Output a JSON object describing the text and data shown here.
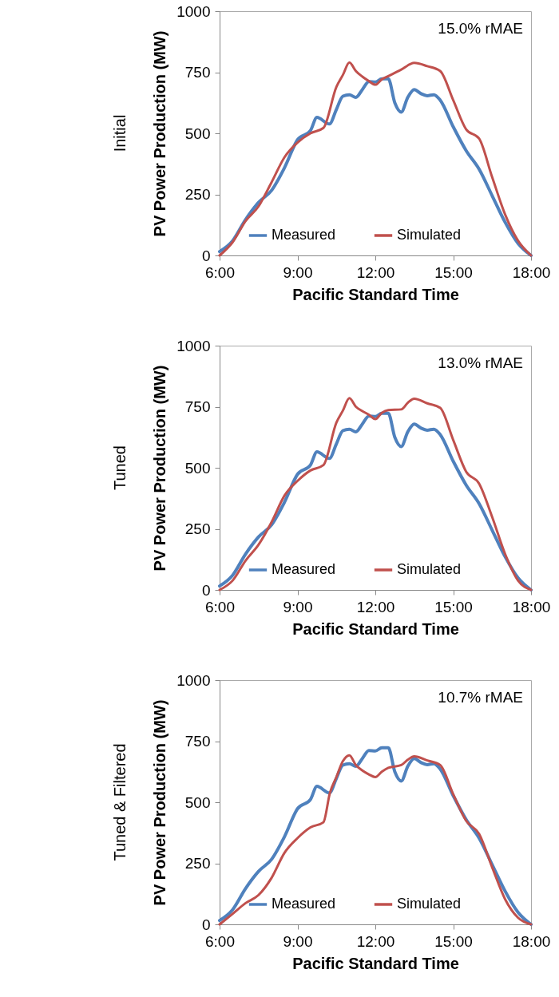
{
  "chart_data": [
    {
      "type": "line",
      "title": "Initial",
      "xlabel": "Pacific Standard Time",
      "ylabel": "PV Power Production (MW)",
      "annotations": [
        "15.0% rMAE"
      ],
      "xlim": [
        6,
        18
      ],
      "xticks": [
        {
          "value": 6,
          "label": "6:00"
        },
        {
          "value": 9,
          "label": "9:00"
        },
        {
          "value": 12,
          "label": "12:00"
        },
        {
          "value": 15,
          "label": "15:00"
        },
        {
          "value": 18,
          "label": "18:00"
        }
      ],
      "ylim": [
        0,
        1000
      ],
      "yticks": [
        0,
        250,
        500,
        750,
        1000
      ],
      "grid": false,
      "legend": "bottom",
      "series": [
        {
          "name": "Measured",
          "color": "#4f81bd",
          "x": [
            6,
            6.5,
            7,
            7.5,
            8,
            8.5,
            9,
            9.5,
            9.75,
            10.23,
            10.5,
            10.75,
            11,
            11.25,
            11.5,
            11.75,
            12,
            12.25,
            12.5,
            12.75,
            13,
            13.25,
            13.5,
            13.75,
            14,
            14.25,
            14.5,
            15,
            15.5,
            16,
            16.5,
            17,
            17.5,
            18
          ],
          "values": [
            16,
            60,
            147,
            217,
            266,
            359,
            473,
            511,
            565,
            538,
            598,
            652,
            658,
            647,
            679,
            712,
            710,
            723,
            723,
            625,
            587,
            647,
            679,
            663,
            654,
            658,
            636,
            527,
            429,
            353,
            245,
            136,
            49,
            0
          ]
        },
        {
          "name": "Simulated",
          "color": "#c0504d",
          "x": [
            6,
            6.5,
            7,
            7.5,
            8,
            8.5,
            9,
            9.5,
            10,
            10.5,
            10.75,
            11,
            11.25,
            11.5,
            11.75,
            12,
            12.25,
            12.5,
            13,
            13.5,
            14,
            14.5,
            15,
            15.5,
            16,
            16.5,
            17,
            17.5,
            18
          ],
          "values": [
            0,
            54,
            141,
            201,
            299,
            402,
            462,
            500,
            522,
            690,
            739,
            790,
            755,
            732,
            714,
            699,
            721,
            734,
            761,
            788,
            775,
            755,
            636,
            516,
            478,
            321,
            168,
            60,
            0
          ]
        }
      ]
    },
    {
      "type": "line",
      "title": "Tuned",
      "xlabel": "Pacific Standard Time",
      "ylabel": "PV Power Production (MW)",
      "annotations": [
        "13.0% rMAE"
      ],
      "xlim": [
        6,
        18
      ],
      "xticks": [
        {
          "value": 6,
          "label": "6:00"
        },
        {
          "value": 9,
          "label": "9:00"
        },
        {
          "value": 12,
          "label": "12:00"
        },
        {
          "value": 15,
          "label": "15:00"
        },
        {
          "value": 18,
          "label": "18:00"
        }
      ],
      "ylim": [
        0,
        1000
      ],
      "yticks": [
        0,
        250,
        500,
        750,
        1000
      ],
      "grid": false,
      "legend": "bottom",
      "series": [
        {
          "name": "Measured",
          "color": "#4f81bd",
          "x": [
            6,
            6.5,
            7,
            7.5,
            8,
            8.5,
            9,
            9.5,
            9.75,
            10.23,
            10.5,
            10.75,
            11,
            11.25,
            11.5,
            11.75,
            12,
            12.25,
            12.5,
            12.75,
            13,
            13.25,
            13.5,
            13.75,
            14,
            14.25,
            14.5,
            15,
            15.5,
            16,
            16.5,
            17,
            17.5,
            18
          ],
          "values": [
            16,
            60,
            147,
            217,
            266,
            359,
            473,
            511,
            565,
            538,
            598,
            652,
            658,
            647,
            679,
            712,
            710,
            723,
            723,
            625,
            587,
            647,
            679,
            663,
            654,
            658,
            636,
            527,
            429,
            353,
            245,
            136,
            49,
            0
          ]
        },
        {
          "name": "Simulated",
          "color": "#c0504d",
          "x": [
            6,
            6.5,
            7,
            7.5,
            8,
            8.5,
            9,
            9.5,
            10,
            10.5,
            10.75,
            11,
            11.25,
            11.5,
            11.75,
            12,
            12.25,
            12.5,
            13,
            13.25,
            13.5,
            14,
            14.5,
            15,
            15.5,
            16,
            16.5,
            17,
            17.5,
            18
          ],
          "values": [
            0,
            38,
            120,
            185,
            277,
            386,
            446,
            489,
            511,
            685,
            734,
            785,
            750,
            732,
            717,
            699,
            725,
            736,
            739,
            766,
            783,
            764,
            745,
            614,
            484,
            435,
            299,
            147,
            38,
            0
          ]
        }
      ]
    },
    {
      "type": "line",
      "title": "Tuned & Filtered",
      "xlabel": "Pacific Standard Time",
      "ylabel": "PV Power Production (MW)",
      "annotations": [
        "10.7% rMAE"
      ],
      "xlim": [
        6,
        18
      ],
      "xticks": [
        {
          "value": 6,
          "label": "6:00"
        },
        {
          "value": 9,
          "label": "9:00"
        },
        {
          "value": 12,
          "label": "12:00"
        },
        {
          "value": 15,
          "label": "15:00"
        },
        {
          "value": 18,
          "label": "18:00"
        }
      ],
      "ylim": [
        0,
        1000
      ],
      "yticks": [
        0,
        250,
        500,
        750,
        1000
      ],
      "grid": false,
      "legend": "bottom",
      "series": [
        {
          "name": "Measured",
          "color": "#4f81bd",
          "x": [
            6,
            6.5,
            7,
            7.5,
            8,
            8.5,
            9,
            9.5,
            9.75,
            10.23,
            10.5,
            10.75,
            11,
            11.25,
            11.5,
            11.75,
            12,
            12.25,
            12.5,
            12.75,
            13,
            13.25,
            13.5,
            13.75,
            14,
            14.25,
            14.5,
            15,
            15.5,
            16,
            16.5,
            17,
            17.5,
            18
          ],
          "values": [
            16,
            60,
            147,
            217,
            266,
            359,
            473,
            511,
            565,
            538,
            598,
            652,
            658,
            647,
            679,
            712,
            710,
            723,
            723,
            625,
            587,
            647,
            679,
            663,
            654,
            658,
            636,
            527,
            429,
            353,
            245,
            136,
            49,
            0
          ]
        },
        {
          "name": "Simulated",
          "color": "#c0504d",
          "x": [
            6,
            6.5,
            7,
            7.5,
            8,
            8.5,
            9,
            9.5,
            10,
            10.25,
            10.5,
            10.75,
            11,
            11.25,
            11.5,
            11.75,
            12,
            12.25,
            12.5,
            13,
            13.25,
            13.5,
            14,
            14.5,
            15,
            15.5,
            16,
            16.5,
            17,
            17.5,
            18
          ],
          "values": [
            0,
            43,
            87,
            120,
            190,
            293,
            353,
            397,
            418,
            538,
            603,
            668,
            692,
            652,
            630,
            614,
            603,
            625,
            641,
            652,
            674,
            688,
            671,
            652,
            533,
            424,
            370,
            234,
            103,
            27,
            0
          ]
        }
      ]
    }
  ]
}
